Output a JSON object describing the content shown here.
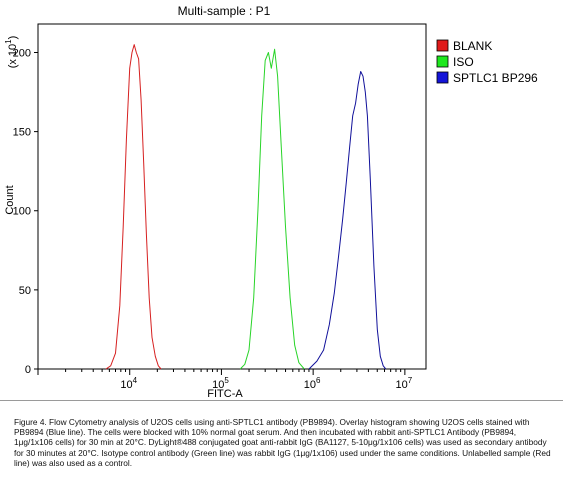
{
  "chart_data": {
    "type": "line",
    "title": "Multi-sample : P1",
    "xlabel": "FITC-A",
    "ylabel": "Count",
    "y_scale_note_prefix": "(x 10",
    "y_scale_note_exp": "1",
    "y_scale_note_suffix": ")",
    "xscale": "log",
    "xlim": [
      1000,
      17000000
    ],
    "ylim": [
      0,
      218
    ],
    "x_tick_labels": [
      {
        "base": "10",
        "exp": "4",
        "value": 10000
      },
      {
        "base": "10",
        "exp": "5",
        "value": 100000
      },
      {
        "base": "10",
        "exp": "6",
        "value": 1000000
      },
      {
        "base": "10",
        "exp": "7",
        "value": 10000000
      }
    ],
    "y_ticks": [
      0,
      50,
      100,
      150,
      200
    ],
    "y_tick_labels": [
      "0",
      "50",
      "100",
      "150",
      "200"
    ],
    "legend_position": "top-right",
    "series": [
      {
        "name": "BLANK",
        "color": "#d62020",
        "swatch": "#e01b1b",
        "x": [
          5500,
          6200,
          7000,
          7800,
          8500,
          9200,
          10000,
          10600,
          11200,
          11800,
          12500,
          13300,
          14200,
          15200,
          16300,
          17500,
          19000,
          20500,
          22000
        ],
        "y": [
          0,
          2,
          10,
          40,
          90,
          145,
          190,
          200,
          205,
          200,
          196,
          170,
          130,
          85,
          45,
          20,
          8,
          2,
          0
        ]
      },
      {
        "name": "ISO",
        "color": "#28d428",
        "swatch": "#1ee81e",
        "x": [
          160000,
          180000,
          200000,
          225000,
          250000,
          275000,
          300000,
          325000,
          350000,
          380000,
          410000,
          450000,
          500000,
          560000,
          630000,
          700000,
          800000
        ],
        "y": [
          0,
          3,
          12,
          45,
          100,
          160,
          195,
          200,
          190,
          202,
          185,
          140,
          90,
          45,
          15,
          4,
          0
        ]
      },
      {
        "name": "SPTLC1 BP296",
        "color": "#10109a",
        "swatch": "#1414d8",
        "x": [
          900000,
          1100000,
          1300000,
          1500000,
          1700000,
          1900000,
          2100000,
          2300000,
          2500000,
          2700000,
          2900000,
          3100000,
          3300000,
          3500000,
          3700000,
          3900000,
          4200000,
          4600000,
          5000000,
          5400000,
          5800000,
          6200000
        ],
        "y": [
          0,
          5,
          12,
          28,
          48,
          72,
          95,
          118,
          140,
          160,
          168,
          180,
          188,
          185,
          175,
          160,
          120,
          65,
          25,
          8,
          2,
          0
        ]
      }
    ]
  },
  "caption": "Figure 4. Flow Cytometry analysis of U2OS cells using anti-SPTLC1 antibody (PB9894).  Overlay histogram showing U2OS cells stained with PB9894 (Blue line). The cells were blocked with 10% normal goat serum.  And then incubated with rabbit anti-SPTLC1 Antibody (PB9894, 1μg/1x106 cells) for 30 min at 20°C. DyLight®488 conjugated goat anti-rabbit IgG (BA1127, 5-10μg/1x106 cells) was used as secondary antibody for 30 minutes at 20°C. Isotype control antibody (Green line) was rabbit IgG (1μg/1x106) used under the same conditions. Unlabelled sample (Red line) was also used as a control."
}
